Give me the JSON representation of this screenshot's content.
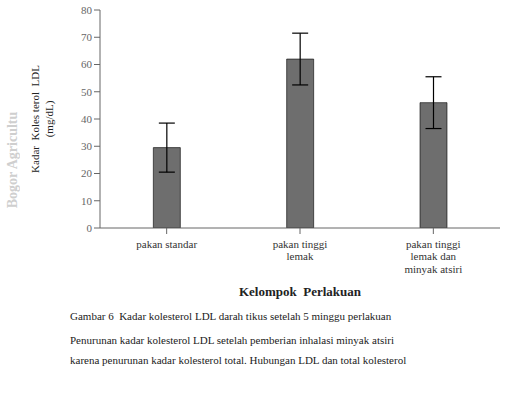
{
  "chart_data": {
    "type": "bar",
    "categories": [
      "pakan standar",
      "pakan tinggi\nlemak",
      "pakan tinggi\nlemak dan\nminyak atsiri"
    ],
    "values": [
      29.5,
      62.0,
      46.0
    ],
    "errors": [
      9.0,
      9.5,
      9.5
    ],
    "color": "#6e6e6e",
    "ylabel": "Kadar  Koles terol  LDL\n(mg/dL)",
    "xlabel": "Kelompok  Perlakuan",
    "ylim": [
      0,
      80
    ],
    "yticks": [
      0,
      10,
      20,
      30,
      40,
      50,
      60,
      70,
      80
    ],
    "grid": false,
    "annotations": [
      "Gambar 6  Kadar kolesterol LDL darah tikus setelah 5 minggu perlakuan",
      "Penurunan kadar kolesterol LDL setelah pemberian inhalasi minyak atsiri",
      "karena penurunan kadar kolesterol total. Hubungan LDL dan total kolesterol",
      "Bogor Agricultu"
    ]
  }
}
